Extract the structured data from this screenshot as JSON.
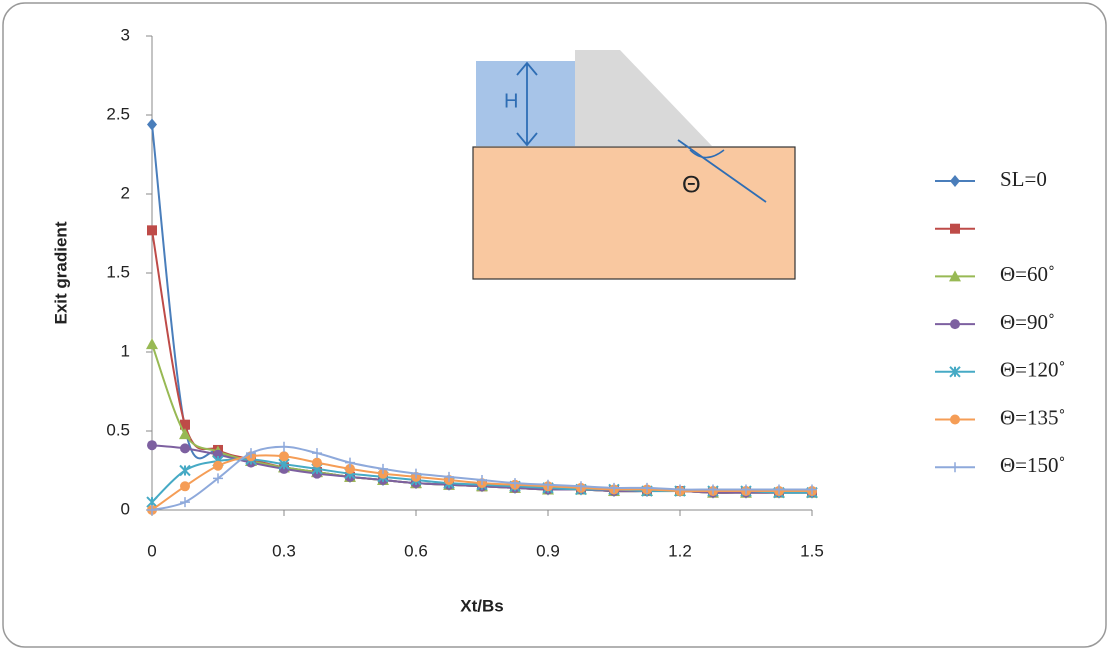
{
  "chart_data": {
    "type": "line",
    "xlabel": "Xt/Bs",
    "ylabel": "Exit gradient",
    "annotations": [
      "H",
      "Θ"
    ],
    "x": [
      0,
      0.075,
      0.15,
      0.225,
      0.3,
      0.375,
      0.45,
      0.525,
      0.6,
      0.675,
      0.75,
      0.825,
      0.9,
      0.975,
      1.05,
      1.125,
      1.2,
      1.275,
      1.35,
      1.425,
      1.5
    ],
    "xlim": [
      0,
      1.5
    ],
    "xticks": [
      0,
      0.3,
      0.6,
      0.9,
      1.2,
      1.5
    ],
    "ylim": [
      0,
      3
    ],
    "yticks": [
      0,
      0.5,
      1,
      1.5,
      2,
      2.5,
      3
    ],
    "grid": false,
    "legend": "right",
    "series": [
      {
        "name": "SL=0",
        "color": "#4a7ebb",
        "marker": "diamond",
        "values": [
          2.44,
          0.52,
          0.37,
          0.31,
          0.27,
          0.24,
          0.21,
          0.19,
          0.17,
          0.16,
          0.15,
          0.14,
          0.13,
          0.13,
          0.12,
          0.12,
          0.12,
          0.11,
          0.11,
          0.11,
          0.11
        ]
      },
      {
        "color": "#be4b48",
        "marker": "square",
        "values": [
          1.77,
          0.54,
          0.38,
          0.32,
          0.27,
          0.24,
          0.21,
          0.19,
          0.17,
          0.16,
          0.15,
          0.14,
          0.13,
          0.13,
          0.12,
          0.12,
          0.12,
          0.11,
          0.11,
          0.11,
          0.11
        ]
      },
      {
        "name": "Θ=60˚",
        "color": "#98b954",
        "marker": "triangle",
        "values": [
          1.05,
          0.48,
          0.37,
          0.31,
          0.27,
          0.24,
          0.21,
          0.19,
          0.17,
          0.16,
          0.15,
          0.14,
          0.13,
          0.13,
          0.12,
          0.12,
          0.12,
          0.11,
          0.11,
          0.11,
          0.11
        ]
      },
      {
        "name": "Θ=90˚",
        "color": "#7d60a0",
        "marker": "circle",
        "values": [
          0.41,
          0.39,
          0.35,
          0.3,
          0.26,
          0.23,
          0.21,
          0.19,
          0.17,
          0.16,
          0.15,
          0.14,
          0.13,
          0.13,
          0.12,
          0.12,
          0.12,
          0.11,
          0.11,
          0.11,
          0.11
        ]
      },
      {
        "name": "Θ=120˚",
        "color": "#46aac5",
        "marker": "star",
        "values": [
          0.05,
          0.25,
          0.31,
          0.32,
          0.29,
          0.26,
          0.23,
          0.21,
          0.19,
          0.17,
          0.16,
          0.15,
          0.14,
          0.13,
          0.13,
          0.12,
          0.12,
          0.12,
          0.12,
          0.11,
          0.11
        ]
      },
      {
        "name": "Θ=135˚",
        "color": "#f59d56",
        "marker": "circle",
        "values": [
          0,
          0.15,
          0.28,
          0.34,
          0.34,
          0.3,
          0.26,
          0.23,
          0.21,
          0.19,
          0.17,
          0.16,
          0.15,
          0.14,
          0.13,
          0.13,
          0.12,
          0.12,
          0.12,
          0.12,
          0.12
        ]
      },
      {
        "name": "Θ=150˚",
        "color": "#8ea9db",
        "marker": "plus",
        "values": [
          0,
          0.05,
          0.2,
          0.36,
          0.4,
          0.36,
          0.3,
          0.26,
          0.23,
          0.21,
          0.19,
          0.17,
          0.16,
          0.15,
          0.14,
          0.14,
          0.13,
          0.13,
          0.13,
          0.13,
          0.13
        ]
      }
    ]
  }
}
